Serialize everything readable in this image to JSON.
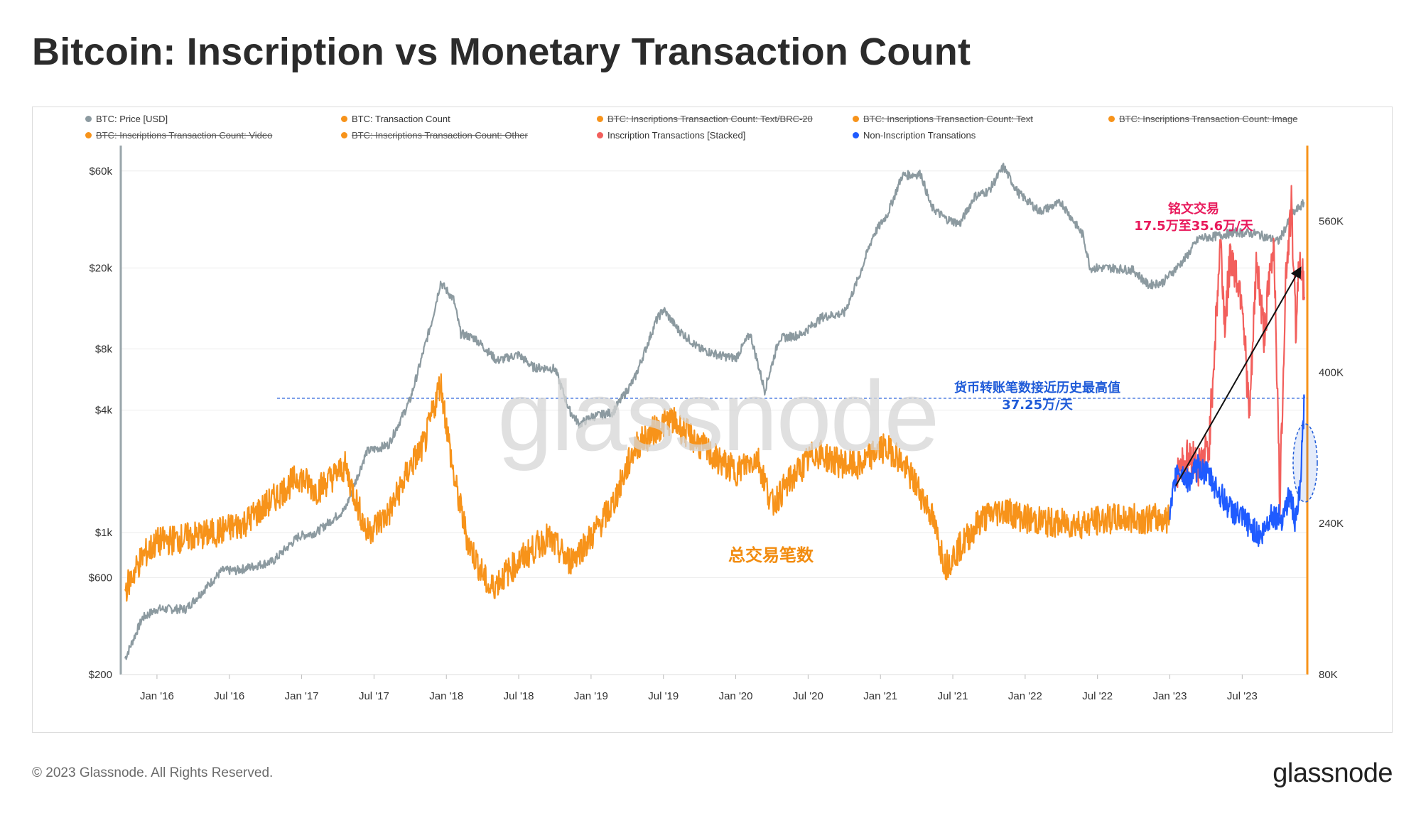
{
  "title": "Bitcoin: Inscription vs Monetary Transaction Count",
  "footer": {
    "copyright": "© 2023 Glassnode. All Rights Reserved.",
    "brand": "glassnode"
  },
  "watermark": "glassnode",
  "legend": [
    {
      "label": "BTC: Price [USD]",
      "color": "#8c9aa0",
      "struck": false
    },
    {
      "label": "BTC: Transaction Count",
      "color": "#f7931a",
      "struck": false
    },
    {
      "label": "BTC: Inscriptions Transaction Count: Text/BRC-20",
      "color": "#f7931a",
      "struck": true
    },
    {
      "label": "BTC: Inscriptions Transaction Count: Text",
      "color": "#f7931a",
      "struck": true
    },
    {
      "label": "BTC: Inscriptions Transaction Count: Image",
      "color": "#f7931a",
      "struck": true
    },
    {
      "label": "BTC: Inscriptions Transaction Count: Video",
      "color": "#f7931a",
      "struck": true
    },
    {
      "label": "BTC: Inscriptions Transaction Count: Other",
      "color": "#f7931a",
      "struck": true
    },
    {
      "label": "Inscription Transactions [Stacked]",
      "color": "#f25f5c",
      "struck": false
    },
    {
      "label": "Non-Inscription Transations",
      "color": "#1f5bff",
      "struck": false
    }
  ],
  "annotations": {
    "inscription_title": "铭文交易",
    "inscription_range": "17.5万至35.6万/天",
    "monetary_title": "货币转账笔数接近历史最高值",
    "monetary_value": "37.25万/天",
    "total_label": "总交易笔数"
  },
  "chart_data": {
    "type": "line",
    "x_ticks": [
      "Jan '16",
      "Jul '16",
      "Jan '17",
      "Jul '17",
      "Jan '18",
      "Jul '18",
      "Jan '19",
      "Jul '19",
      "Jan '20",
      "Jul '20",
      "Jan '21",
      "Jul '21",
      "Jan '22",
      "Jul '22",
      "Jan '23",
      "Jul '23"
    ],
    "x_range": [
      2015.75,
      2023.95
    ],
    "y_left": {
      "scale": "log",
      "range": [
        200,
        80000
      ],
      "ticks": [
        {
          "label": "$60k",
          "value": 60000
        },
        {
          "label": "$20k",
          "value": 20000
        },
        {
          "label": "$8k",
          "value": 8000
        },
        {
          "label": "$4k",
          "value": 4000
        },
        {
          "label": "$1k",
          "value": 1000
        },
        {
          "label": "$600",
          "value": 600
        },
        {
          "label": "$200",
          "value": 200
        }
      ]
    },
    "y_right": {
      "scale": "linear",
      "range": [
        80000,
        640000
      ],
      "ticks": [
        {
          "label": "560K",
          "value": 560000
        },
        {
          "label": "400K",
          "value": 400000
        },
        {
          "label": "240K",
          "value": 240000
        },
        {
          "label": "80K",
          "value": 80000
        }
      ]
    },
    "reference_line": {
      "value": 372500,
      "axis": "right"
    },
    "series": [
      {
        "name": "BTC: Price [USD]",
        "axis": "left",
        "color": "#8c9aa0",
        "x": [
          2015.78,
          2015.9,
          2016.0,
          2016.2,
          2016.45,
          2016.55,
          2016.8,
          2016.98,
          2017.1,
          2017.3,
          2017.45,
          2017.6,
          2017.75,
          2017.9,
          2017.96,
          2018.05,
          2018.1,
          2018.2,
          2018.35,
          2018.5,
          2018.6,
          2018.75,
          2018.85,
          2018.92,
          2019.0,
          2019.15,
          2019.3,
          2019.45,
          2019.5,
          2019.6,
          2019.75,
          2019.9,
          2020.0,
          2020.1,
          2020.2,
          2020.3,
          2020.45,
          2020.6,
          2020.75,
          2020.85,
          2020.95,
          2021.05,
          2021.15,
          2021.28,
          2021.35,
          2021.45,
          2021.55,
          2021.65,
          2021.75,
          2021.85,
          2021.95,
          2022.1,
          2022.25,
          2022.4,
          2022.45,
          2022.6,
          2022.75,
          2022.85,
          2022.95,
          2023.1,
          2023.2,
          2023.3,
          2023.45,
          2023.6,
          2023.75,
          2023.85,
          2023.93
        ],
        "values": [
          240,
          380,
          420,
          420,
          650,
          650,
          720,
          960,
          1000,
          1300,
          2500,
          2700,
          4500,
          11000,
          17000,
          14000,
          9500,
          9000,
          7000,
          7500,
          6500,
          6400,
          4000,
          3400,
          3700,
          3900,
          5700,
          11000,
          12500,
          10000,
          8000,
          7400,
          7200,
          9500,
          5000,
          9000,
          9400,
          11500,
          12000,
          18000,
          29000,
          37000,
          57000,
          58000,
          40000,
          35000,
          33000,
          45000,
          48000,
          63000,
          47000,
          38000,
          42000,
          29000,
          20000,
          20000,
          19500,
          16500,
          17000,
          22000,
          28000,
          28500,
          30000,
          29500,
          27000,
          37000,
          42000
        ]
      },
      {
        "name": "BTC: Transaction Count",
        "axis": "right",
        "color": "#f7931a",
        "x": [
          2015.78,
          2015.9,
          2016.0,
          2016.2,
          2016.4,
          2016.6,
          2016.8,
          2016.98,
          2017.1,
          2017.3,
          2017.45,
          2017.6,
          2017.75,
          2017.85,
          2017.96,
          2018.05,
          2018.15,
          2018.3,
          2018.5,
          2018.7,
          2018.85,
          2019.0,
          2019.15,
          2019.3,
          2019.45,
          2019.55,
          2019.7,
          2019.85,
          2020.0,
          2020.15,
          2020.25,
          2020.4,
          2020.55,
          2020.7,
          2020.85,
          2021.0,
          2021.1,
          2021.25,
          2021.35,
          2021.45,
          2021.55,
          2021.7,
          2021.85,
          2022.0,
          2022.2,
          2022.4,
          2022.6,
          2022.8,
          2023.0
        ],
        "values": [
          170000,
          205000,
          220000,
          225000,
          230000,
          240000,
          265000,
          290000,
          275000,
          300000,
          230000,
          250000,
          300000,
          325000,
          390000,
          290000,
          220000,
          170000,
          200000,
          225000,
          200000,
          225000,
          260000,
          320000,
          340000,
          350000,
          330000,
          310000,
          295000,
          310000,
          260000,
          290000,
          315000,
          305000,
          300000,
          320000,
          315000,
          280000,
          250000,
          195000,
          215000,
          245000,
          255000,
          245000,
          240000,
          240000,
          245000,
          245000,
          245000
        ]
      },
      {
        "name": "Inscription Transactions [Stacked]",
        "axis": "right",
        "color": "#f25f5c",
        "x": [
          2023.05,
          2023.15,
          2023.2,
          2023.27,
          2023.35,
          2023.38,
          2023.42,
          2023.5,
          2023.55,
          2023.6,
          2023.65,
          2023.72,
          2023.76,
          2023.8,
          2023.84,
          2023.87,
          2023.9,
          2023.93
        ],
        "values": [
          300000,
          310000,
          300000,
          320000,
          540000,
          450000,
          525000,
          480000,
          350000,
          520000,
          440000,
          540000,
          260000,
          500000,
          575000,
          450000,
          530000,
          480000
        ]
      },
      {
        "name": "Non-Inscription Transations",
        "axis": "right",
        "color": "#1f5bff",
        "x": [
          2023.0,
          2023.05,
          2023.12,
          2023.2,
          2023.27,
          2023.35,
          2023.42,
          2023.5,
          2023.57,
          2023.63,
          2023.7,
          2023.77,
          2023.83,
          2023.87,
          2023.9,
          2023.93
        ],
        "values": [
          245000,
          300000,
          285000,
          300000,
          290000,
          270000,
          255000,
          245000,
          235000,
          225000,
          250000,
          245000,
          270000,
          240000,
          275000,
          372500
        ]
      }
    ]
  }
}
